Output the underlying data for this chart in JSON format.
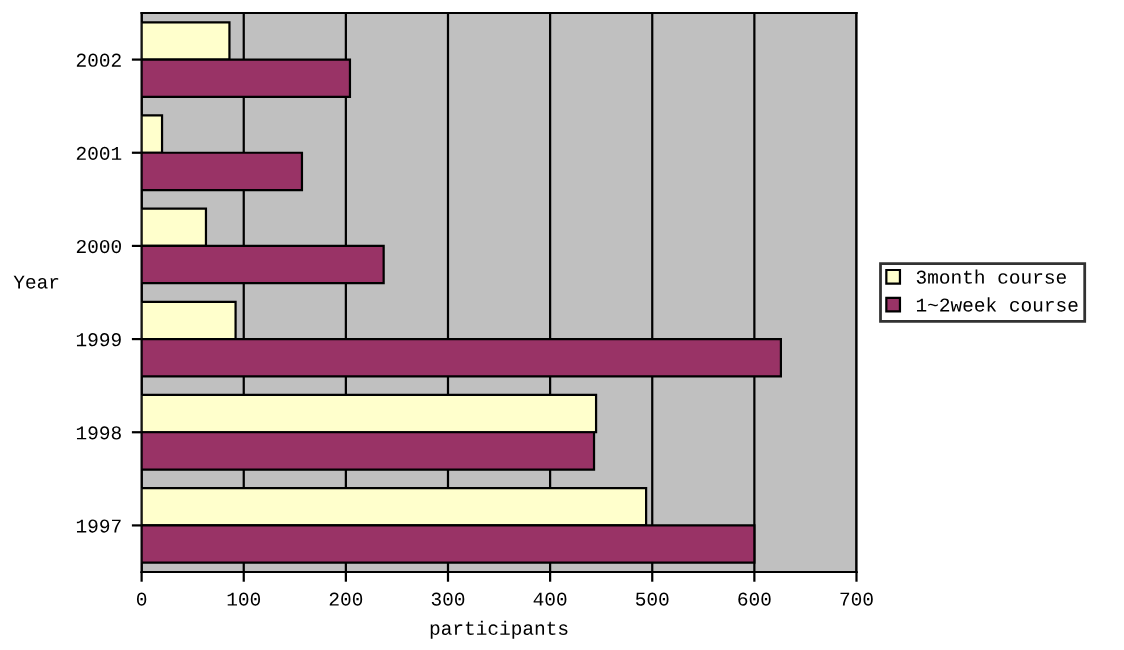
{
  "chart_data": {
    "type": "bar",
    "orientation": "horizontal",
    "xlabel": "participants",
    "ylabel": "Year",
    "categories": [
      "2002",
      "2001",
      "2000",
      "1999",
      "1998",
      "1997"
    ],
    "series": [
      {
        "name": "3month course",
        "color": "#ffffcc",
        "values": [
          86,
          20,
          63,
          92,
          445,
          494
        ]
      },
      {
        "name": "1~2week course",
        "color": "#993366",
        "values": [
          204,
          157,
          237,
          626,
          443,
          600
        ]
      }
    ],
    "xlim": [
      0,
      700
    ],
    "xticks": [
      0,
      100,
      200,
      300,
      400,
      500,
      600,
      700
    ],
    "grid": "x",
    "legend": "right"
  }
}
